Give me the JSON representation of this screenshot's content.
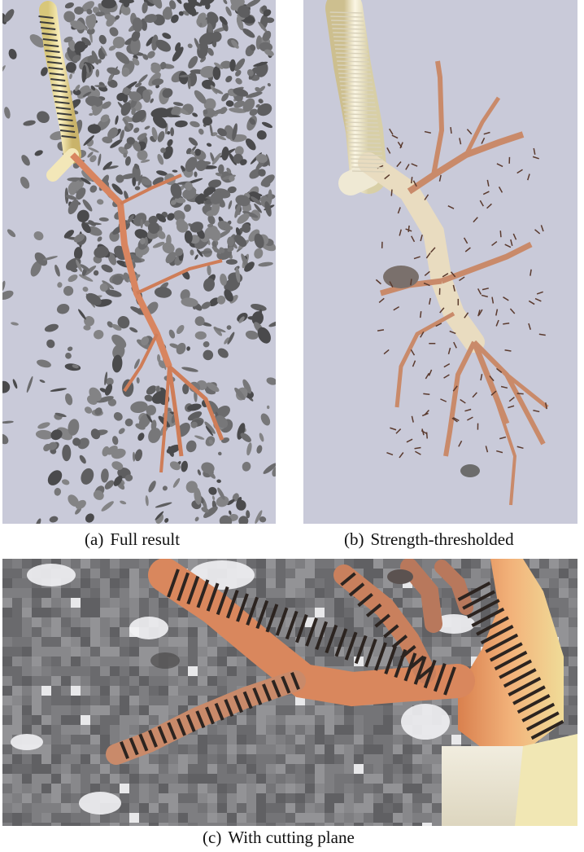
{
  "figure": {
    "panels": [
      {
        "id": "a",
        "label": "(a)",
        "caption": "Full result"
      },
      {
        "id": "b",
        "label": "(b)",
        "caption": "Strength-thresholded"
      },
      {
        "id": "c",
        "label": "(c)",
        "caption": "With cutting plane"
      }
    ]
  },
  "colors": {
    "viewport_background": "#c9cad9",
    "clutter": "#6b6b6d",
    "trachea": "#f2e6a8",
    "branch": "#d9825a",
    "cutting_plane": "#7a7a7d"
  }
}
